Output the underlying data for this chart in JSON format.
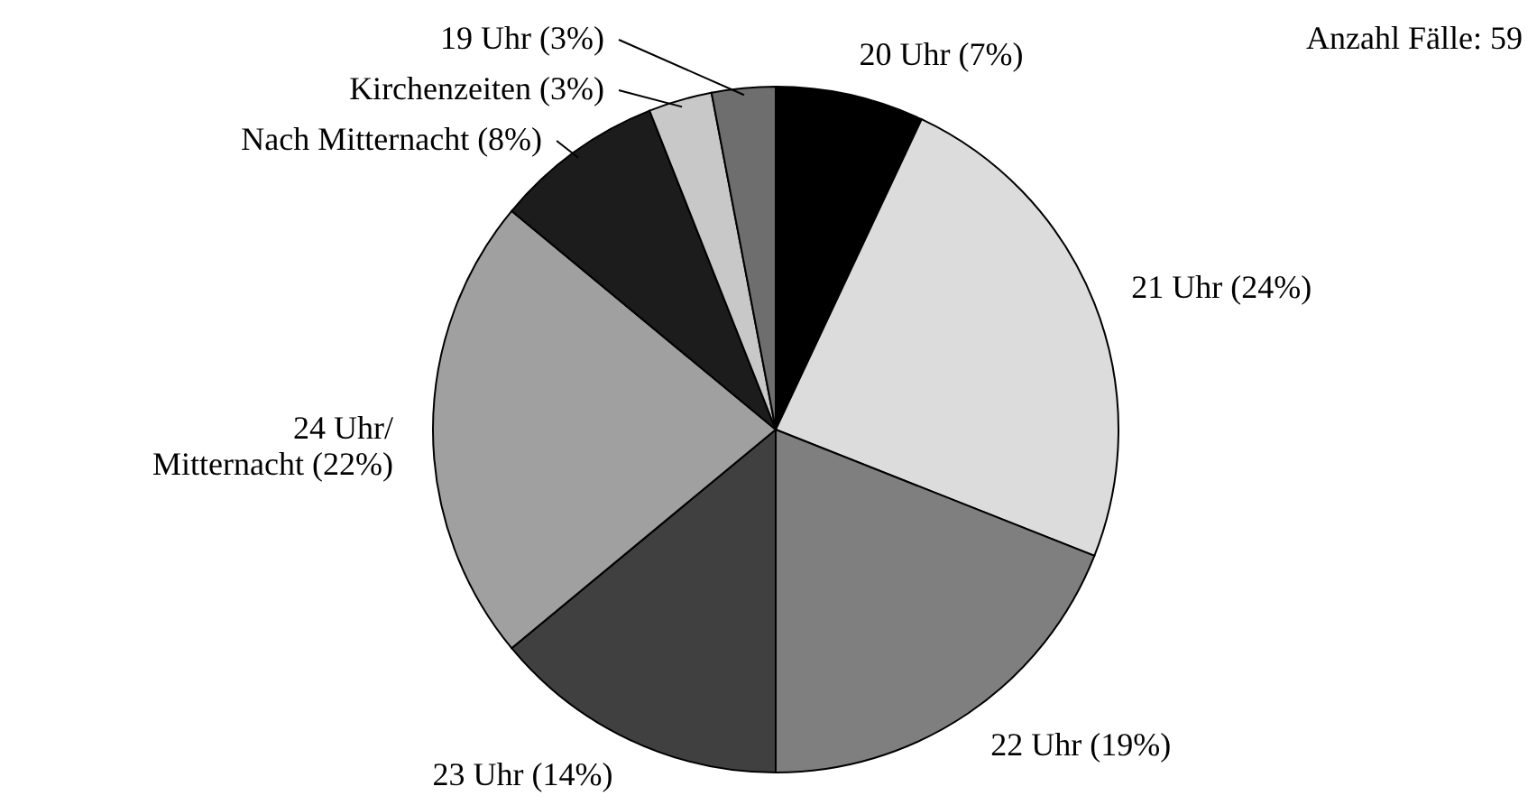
{
  "chart_data": {
    "type": "pie",
    "categories": [
      "20 Uhr (7%)",
      "21 Uhr (24%)",
      "22 Uhr (19%)",
      "23 Uhr (14%)",
      "24 Uhr/\nMitternacht (22%)",
      "Nach Mitternacht (8%)",
      "Kirchenzeiten (3%)",
      "19 Uhr (3%)"
    ],
    "values": [
      7,
      24,
      19,
      14,
      22,
      8,
      3,
      3
    ],
    "colors": [
      "#000000",
      "#dcdcdc",
      "#7f7f7f",
      "#404040",
      "#a0a0a0",
      "#1c1c1c",
      "#c8c8c8",
      "#6e6e6e"
    ],
    "annotations": [
      "Anzahl Fälle: 59"
    ]
  }
}
